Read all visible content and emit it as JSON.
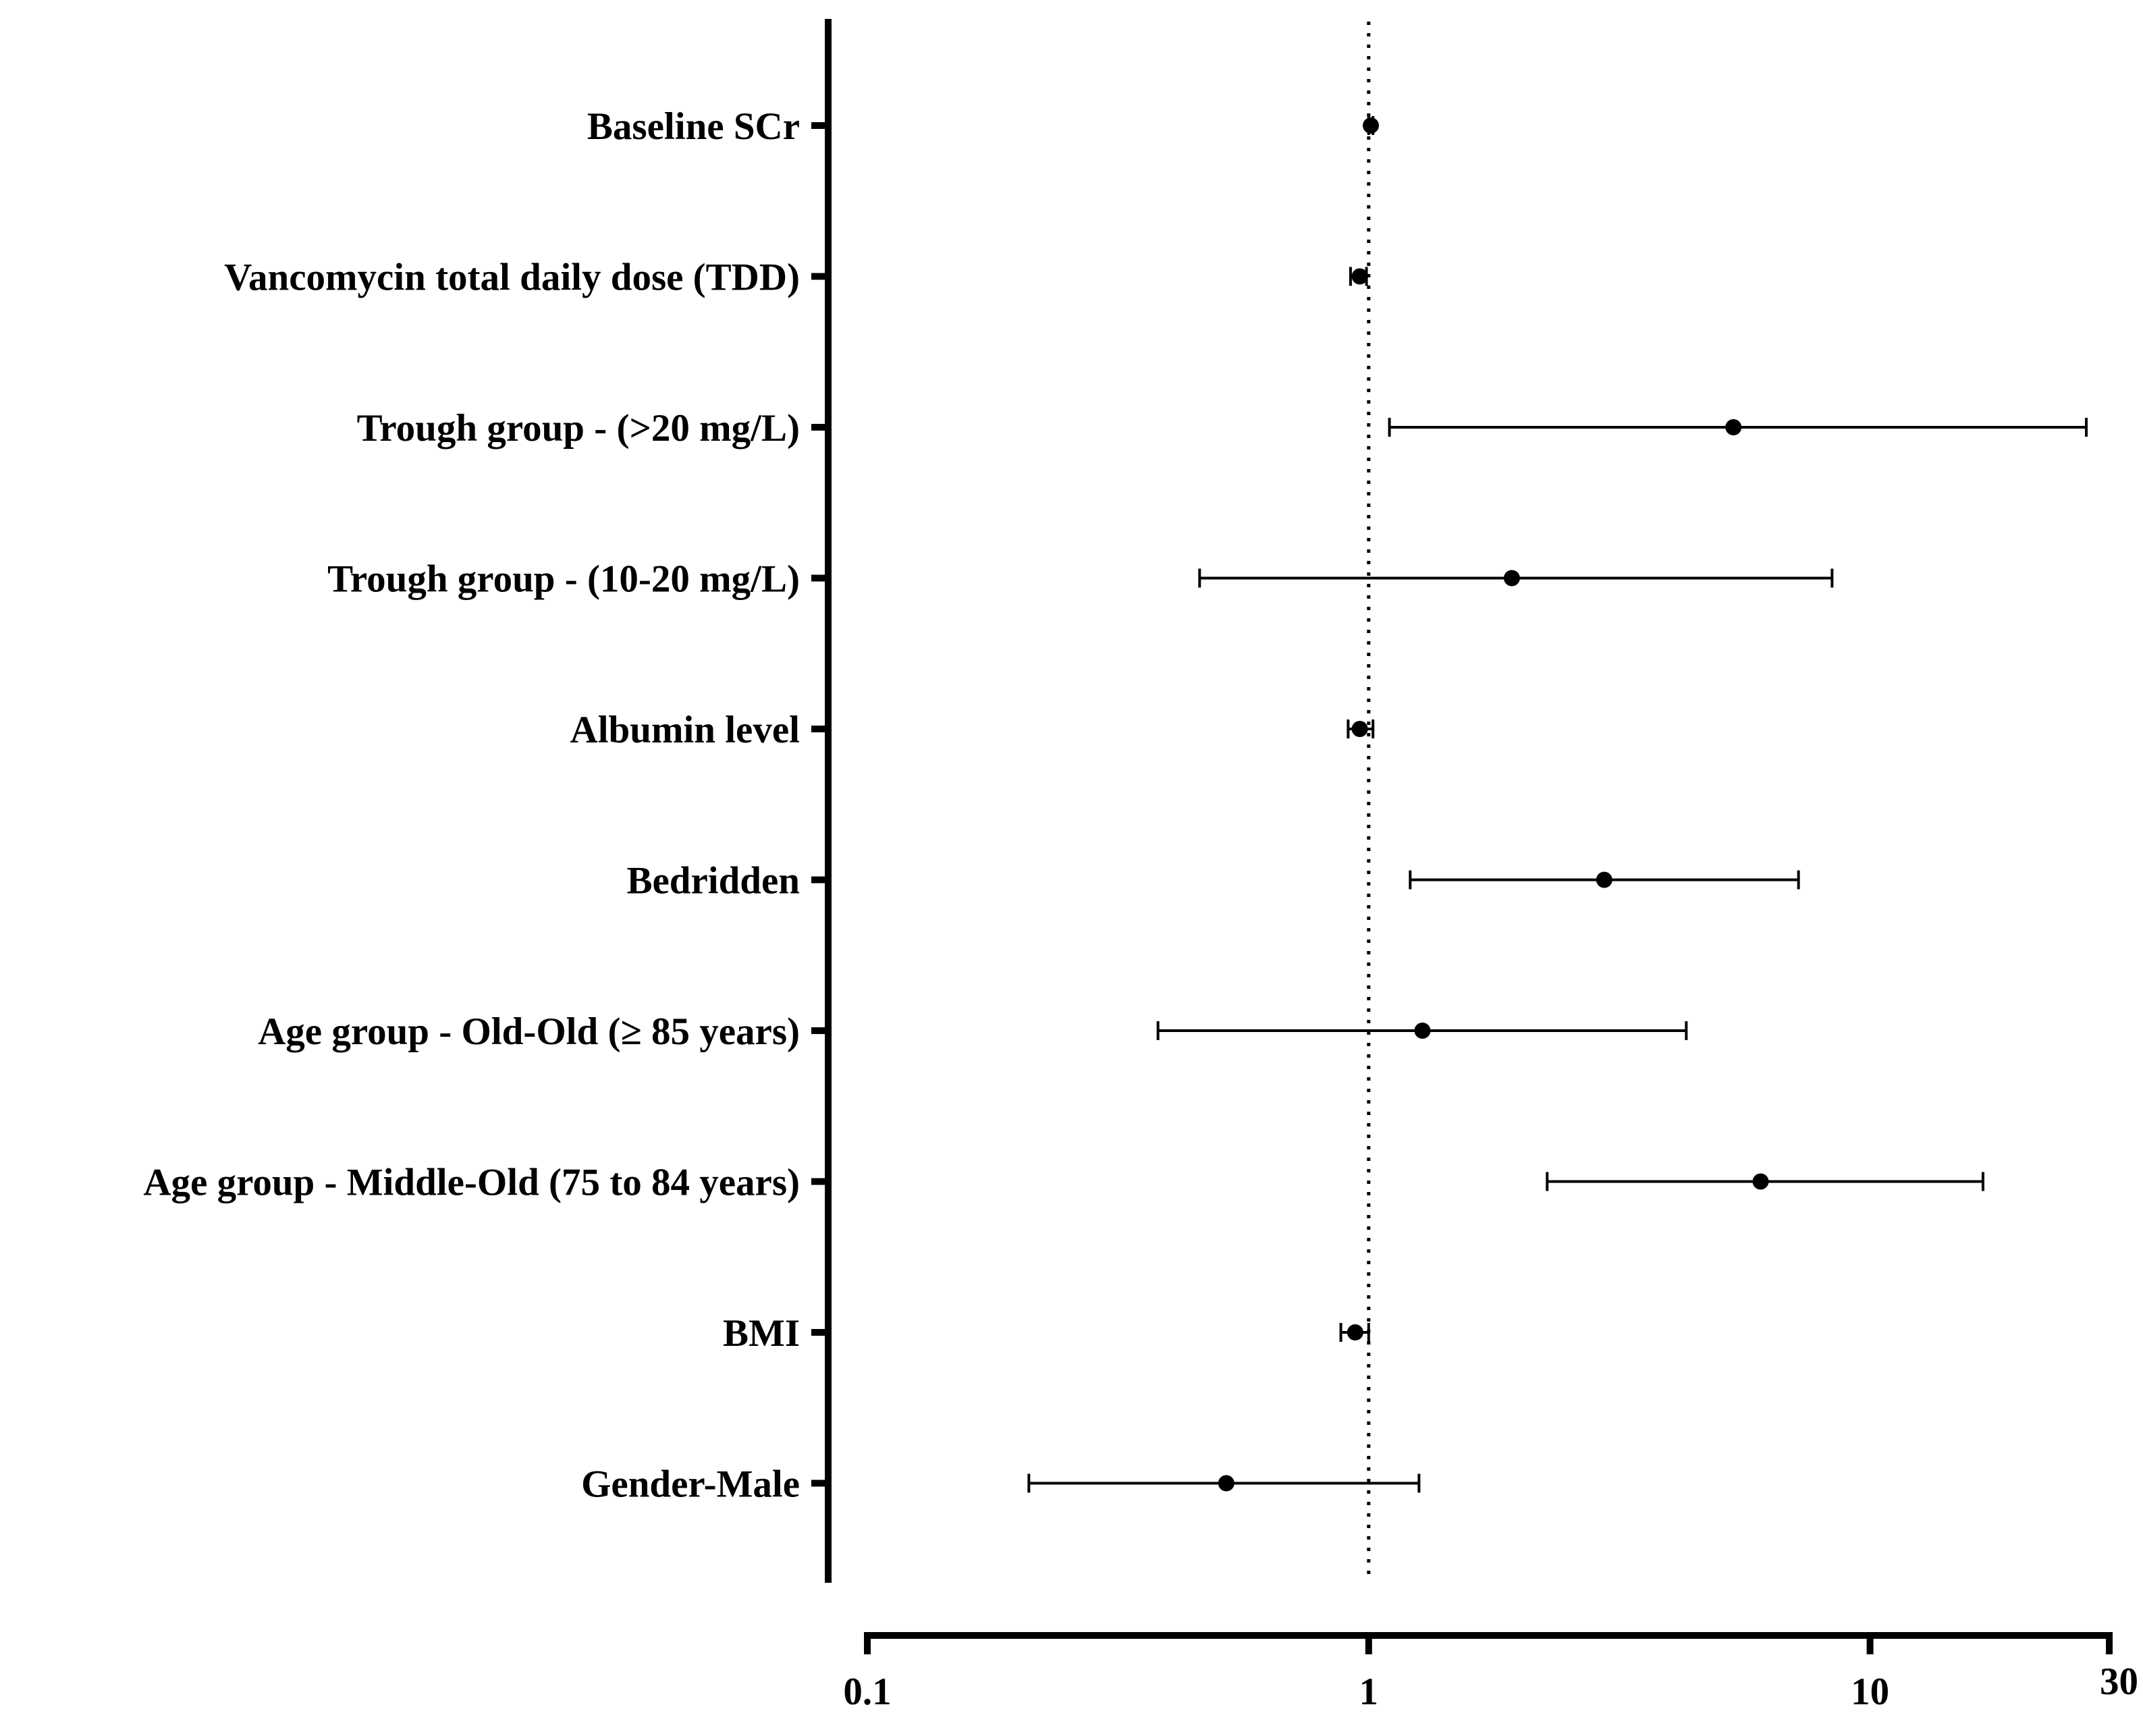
{
  "chart_data": {
    "type": "forest",
    "title": "",
    "xlabel": "",
    "ylabel": "",
    "x_scale": "log",
    "xlim": [
      0.1,
      30
    ],
    "x_ticks": [
      {
        "value": 0.1,
        "label": "0.1"
      },
      {
        "value": 1,
        "label": "1"
      },
      {
        "value": 10,
        "label": "10"
      },
      {
        "value": 30,
        "label": "30"
      }
    ],
    "reference_line": 1,
    "rows": [
      {
        "label": "Baseline SCr",
        "estimate": 1.01,
        "lower": 1.0,
        "upper": 1.02
      },
      {
        "label": "Vancomycin total daily dose (TDD)",
        "estimate": 0.96,
        "lower": 0.92,
        "upper": 0.99
      },
      {
        "label": "Trough group - (>20 mg/L)",
        "estimate": 5.34,
        "lower": 1.1,
        "upper": 27.0
      },
      {
        "label": "Trough group - (10-20 mg/L)",
        "estimate": 1.93,
        "lower": 0.46,
        "upper": 8.4
      },
      {
        "label": "Albumin level",
        "estimate": 0.96,
        "lower": 0.91,
        "upper": 1.02
      },
      {
        "label": "Bedridden",
        "estimate": 2.95,
        "lower": 1.21,
        "upper": 7.2
      },
      {
        "label": "Age group - Old-Old (≥ 85 years)",
        "estimate": 1.28,
        "lower": 0.38,
        "upper": 4.3
      },
      {
        "label": "Age group - Middle-Old (75 to 84 years)",
        "estimate": 6.05,
        "lower": 2.27,
        "upper": 16.8
      },
      {
        "label": "BMI",
        "estimate": 0.94,
        "lower": 0.88,
        "upper": 1.0
      },
      {
        "label": "Gender-Male",
        "estimate": 0.52,
        "lower": 0.21,
        "upper": 1.26
      }
    ]
  }
}
